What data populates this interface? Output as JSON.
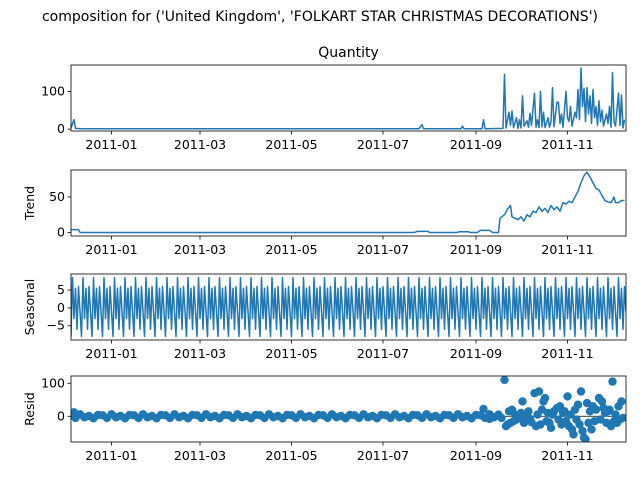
{
  "chart_data": {
    "type": "line",
    "suptitle": "composition for ('United Kingdom', 'FOLKART STAR CHRISTMAS DECORATIONS')",
    "x_ticks": [
      "2011-01",
      "2011-03",
      "2011-05",
      "2011-07",
      "2011-09",
      "2011-11"
    ],
    "x_range": [
      "2010-12-05",
      "2011-12-10"
    ],
    "colors": {
      "line": "#1f77b4",
      "zero": "#000000"
    },
    "panels": [
      {
        "key": "observed",
        "title": "Quantity",
        "ylabel": "",
        "yticks": [
          0,
          100
        ],
        "ylim": [
          -5,
          170
        ],
        "kind": "line",
        "points": [
          [
            "2010-12-05",
            3
          ],
          [
            "2010-12-07",
            25
          ],
          [
            "2010-12-08",
            2
          ],
          [
            "2010-12-12",
            1
          ],
          [
            "2011-07-25",
            1
          ],
          [
            "2011-07-27",
            12
          ],
          [
            "2011-07-28",
            1
          ],
          [
            "2011-08-22",
            1
          ],
          [
            "2011-08-23",
            8
          ],
          [
            "2011-08-24",
            1
          ],
          [
            "2011-09-05",
            1
          ],
          [
            "2011-09-06",
            25
          ],
          [
            "2011-09-07",
            1
          ],
          [
            "2011-09-19",
            2
          ],
          [
            "2011-09-20",
            145
          ],
          [
            "2011-09-21",
            3
          ],
          [
            "2011-09-23",
            45
          ],
          [
            "2011-09-24",
            10
          ],
          [
            "2011-09-25",
            48
          ],
          [
            "2011-09-26",
            4
          ],
          [
            "2011-09-28",
            30
          ],
          [
            "2011-09-29",
            2
          ],
          [
            "2011-09-30",
            25
          ],
          [
            "2011-10-01",
            3
          ],
          [
            "2011-10-02",
            88
          ],
          [
            "2011-10-03",
            8
          ],
          [
            "2011-10-05",
            22
          ],
          [
            "2011-10-06",
            5
          ],
          [
            "2011-10-07",
            42
          ],
          [
            "2011-10-08",
            10
          ],
          [
            "2011-10-10",
            95
          ],
          [
            "2011-10-11",
            5
          ],
          [
            "2011-10-12",
            25
          ],
          [
            "2011-10-13",
            4
          ],
          [
            "2011-10-14",
            100
          ],
          [
            "2011-10-15",
            6
          ],
          [
            "2011-10-16",
            45
          ],
          [
            "2011-10-17",
            4
          ],
          [
            "2011-10-19",
            30
          ],
          [
            "2011-10-20",
            5
          ],
          [
            "2011-10-21",
            20
          ],
          [
            "2011-10-22",
            110
          ],
          [
            "2011-10-23",
            6
          ],
          [
            "2011-10-25",
            72
          ],
          [
            "2011-10-26",
            70
          ],
          [
            "2011-10-27",
            15
          ],
          [
            "2011-10-28",
            40
          ],
          [
            "2011-10-29",
            5
          ],
          [
            "2011-10-31",
            100
          ],
          [
            "2011-11-01",
            30
          ],
          [
            "2011-11-02",
            20
          ],
          [
            "2011-11-03",
            60
          ],
          [
            "2011-11-04",
            8
          ],
          [
            "2011-11-06",
            45
          ],
          [
            "2011-11-07",
            30
          ],
          [
            "2011-11-08",
            105
          ],
          [
            "2011-11-09",
            25
          ],
          [
            "2011-11-10",
            162
          ],
          [
            "2011-11-11",
            60
          ],
          [
            "2011-11-12",
            108
          ],
          [
            "2011-11-13",
            20
          ],
          [
            "2011-11-14",
            110
          ],
          [
            "2011-11-15",
            40
          ],
          [
            "2011-11-16",
            88
          ],
          [
            "2011-11-17",
            15
          ],
          [
            "2011-11-18",
            105
          ],
          [
            "2011-11-19",
            30
          ],
          [
            "2011-11-20",
            60
          ],
          [
            "2011-11-21",
            10
          ],
          [
            "2011-11-22",
            75
          ],
          [
            "2011-11-23",
            20
          ],
          [
            "2011-11-24",
            50
          ],
          [
            "2011-11-25",
            8
          ],
          [
            "2011-11-27",
            40
          ],
          [
            "2011-11-28",
            15
          ],
          [
            "2011-11-29",
            60
          ],
          [
            "2011-11-30",
            5
          ],
          [
            "2011-12-01",
            150
          ],
          [
            "2011-12-02",
            20
          ],
          [
            "2011-12-03",
            8
          ],
          [
            "2011-12-05",
            95
          ],
          [
            "2011-12-06",
            10
          ],
          [
            "2011-12-07",
            90
          ],
          [
            "2011-12-08",
            3
          ],
          [
            "2011-12-09",
            25
          ]
        ]
      },
      {
        "key": "trend",
        "title": "",
        "ylabel": "Trend",
        "yticks": [
          0,
          50
        ],
        "ylim": [
          -5,
          88
        ],
        "kind": "line",
        "points": [
          [
            "2010-12-05",
            4
          ],
          [
            "2010-12-10",
            4
          ],
          [
            "2010-12-11",
            0
          ],
          [
            "2011-07-22",
            0
          ],
          [
            "2011-07-24",
            1.5
          ],
          [
            "2011-07-31",
            1.5
          ],
          [
            "2011-08-01",
            0
          ],
          [
            "2011-08-19",
            0
          ],
          [
            "2011-08-21",
            1
          ],
          [
            "2011-08-27",
            1
          ],
          [
            "2011-08-28",
            0
          ],
          [
            "2011-09-02",
            0
          ],
          [
            "2011-09-04",
            3
          ],
          [
            "2011-09-10",
            3
          ],
          [
            "2011-09-12",
            0
          ],
          [
            "2011-09-16",
            0
          ],
          [
            "2011-09-17",
            20
          ],
          [
            "2011-09-20",
            25
          ],
          [
            "2011-09-22",
            33
          ],
          [
            "2011-09-24",
            38
          ],
          [
            "2011-09-25",
            22
          ],
          [
            "2011-09-27",
            20
          ],
          [
            "2011-09-29",
            18
          ],
          [
            "2011-10-01",
            22
          ],
          [
            "2011-10-03",
            16
          ],
          [
            "2011-10-05",
            25
          ],
          [
            "2011-10-07",
            22
          ],
          [
            "2011-10-09",
            30
          ],
          [
            "2011-10-11",
            28
          ],
          [
            "2011-10-13",
            36
          ],
          [
            "2011-10-15",
            30
          ],
          [
            "2011-10-17",
            34
          ],
          [
            "2011-10-19",
            28
          ],
          [
            "2011-10-21",
            38
          ],
          [
            "2011-10-23",
            32
          ],
          [
            "2011-10-25",
            36
          ],
          [
            "2011-10-27",
            30
          ],
          [
            "2011-10-29",
            42
          ],
          [
            "2011-10-31",
            40
          ],
          [
            "2011-11-02",
            44
          ],
          [
            "2011-11-04",
            42
          ],
          [
            "2011-11-06",
            50
          ],
          [
            "2011-11-08",
            58
          ],
          [
            "2011-11-10",
            70
          ],
          [
            "2011-11-12",
            80
          ],
          [
            "2011-11-14",
            85
          ],
          [
            "2011-11-16",
            78
          ],
          [
            "2011-11-18",
            70
          ],
          [
            "2011-11-20",
            62
          ],
          [
            "2011-11-22",
            60
          ],
          [
            "2011-11-24",
            52
          ],
          [
            "2011-11-26",
            45
          ],
          [
            "2011-11-28",
            43
          ],
          [
            "2011-11-30",
            42
          ],
          [
            "2011-12-02",
            50
          ],
          [
            "2011-12-03",
            42
          ],
          [
            "2011-12-05",
            42
          ],
          [
            "2011-12-07",
            45
          ],
          [
            "2011-12-09",
            45
          ]
        ]
      },
      {
        "key": "seasonal",
        "title": "",
        "ylabel": "Seasonal",
        "yticks": [
          -5,
          0,
          5
        ],
        "ylim": [
          -9,
          9.5
        ],
        "kind": "seasonal",
        "period_days": 7,
        "pattern": [
          -8,
          8.5,
          -3,
          5.5,
          -6,
          6,
          -1
        ]
      },
      {
        "key": "resid",
        "title": "",
        "ylabel": "Resid",
        "yticks": [
          0,
          100
        ],
        "ylim": [
          -78,
          122
        ],
        "kind": "scatter",
        "base_range": [
          "2010-12-05",
          "2011-09-15"
        ],
        "base_step_days": 3,
        "base_pattern": [
          3,
          -5,
          6,
          -3,
          1,
          -6,
          4
        ],
        "points": [
          [
            "2010-12-07",
            12
          ],
          [
            "2011-09-06",
            22
          ],
          [
            "2011-09-10",
            -8
          ],
          [
            "2011-09-16",
            5
          ],
          [
            "2011-09-18",
            -5
          ],
          [
            "2011-09-20",
            110
          ],
          [
            "2011-09-21",
            -30
          ],
          [
            "2011-09-22",
            -25
          ],
          [
            "2011-09-23",
            15
          ],
          [
            "2011-09-24",
            -20
          ],
          [
            "2011-09-25",
            20
          ],
          [
            "2011-09-26",
            -15
          ],
          [
            "2011-09-27",
            5
          ],
          [
            "2011-09-28",
            -10
          ],
          [
            "2011-09-30",
            -5
          ],
          [
            "2011-10-01",
            10
          ],
          [
            "2011-10-02",
            45
          ],
          [
            "2011-10-03",
            -20
          ],
          [
            "2011-10-04",
            5
          ],
          [
            "2011-10-05",
            -12
          ],
          [
            "2011-10-06",
            15
          ],
          [
            "2011-10-07",
            -8
          ],
          [
            "2011-10-08",
            -18
          ],
          [
            "2011-10-10",
            70
          ],
          [
            "2011-10-11",
            -30
          ],
          [
            "2011-10-12",
            5
          ],
          [
            "2011-10-13",
            75
          ],
          [
            "2011-10-14",
            -25
          ],
          [
            "2011-10-15",
            20
          ],
          [
            "2011-10-16",
            45
          ],
          [
            "2011-10-17",
            55
          ],
          [
            "2011-10-18",
            -15
          ],
          [
            "2011-10-19",
            10
          ],
          [
            "2011-10-20",
            -20
          ],
          [
            "2011-10-21",
            -35
          ],
          [
            "2011-10-22",
            5
          ],
          [
            "2011-10-23",
            15
          ],
          [
            "2011-10-25",
            25
          ],
          [
            "2011-10-26",
            -10
          ],
          [
            "2011-10-27",
            30
          ],
          [
            "2011-10-28",
            -25
          ],
          [
            "2011-10-29",
            10
          ],
          [
            "2011-10-30",
            15
          ],
          [
            "2011-10-31",
            -15
          ],
          [
            "2011-11-01",
            60
          ],
          [
            "2011-11-02",
            -30
          ],
          [
            "2011-11-03",
            5
          ],
          [
            "2011-11-04",
            -40
          ],
          [
            "2011-11-05",
            -55
          ],
          [
            "2011-11-06",
            20
          ],
          [
            "2011-11-07",
            -10
          ],
          [
            "2011-11-08",
            35
          ],
          [
            "2011-11-09",
            -25
          ],
          [
            "2011-11-10",
            75
          ],
          [
            "2011-11-11",
            -45
          ],
          [
            "2011-11-12",
            -65
          ],
          [
            "2011-11-13",
            -70
          ],
          [
            "2011-11-14",
            40
          ],
          [
            "2011-11-15",
            -20
          ],
          [
            "2011-11-16",
            15
          ],
          [
            "2011-11-17",
            -40
          ],
          [
            "2011-11-18",
            30
          ],
          [
            "2011-11-19",
            -15
          ],
          [
            "2011-11-20",
            20
          ],
          [
            "2011-11-22",
            55
          ],
          [
            "2011-11-23",
            -10
          ],
          [
            "2011-11-24",
            45
          ],
          [
            "2011-11-25",
            25
          ],
          [
            "2011-11-26",
            10
          ],
          [
            "2011-11-27",
            -20
          ],
          [
            "2011-11-28",
            15
          ],
          [
            "2011-11-29",
            20
          ],
          [
            "2011-11-30",
            -30
          ],
          [
            "2011-12-01",
            105
          ],
          [
            "2011-12-02",
            -15
          ],
          [
            "2011-12-03",
            5
          ],
          [
            "2011-12-04",
            -20
          ],
          [
            "2011-12-05",
            30
          ],
          [
            "2011-12-06",
            -10
          ],
          [
            "2011-12-07",
            45
          ],
          [
            "2011-12-08",
            -5
          ]
        ]
      }
    ]
  }
}
